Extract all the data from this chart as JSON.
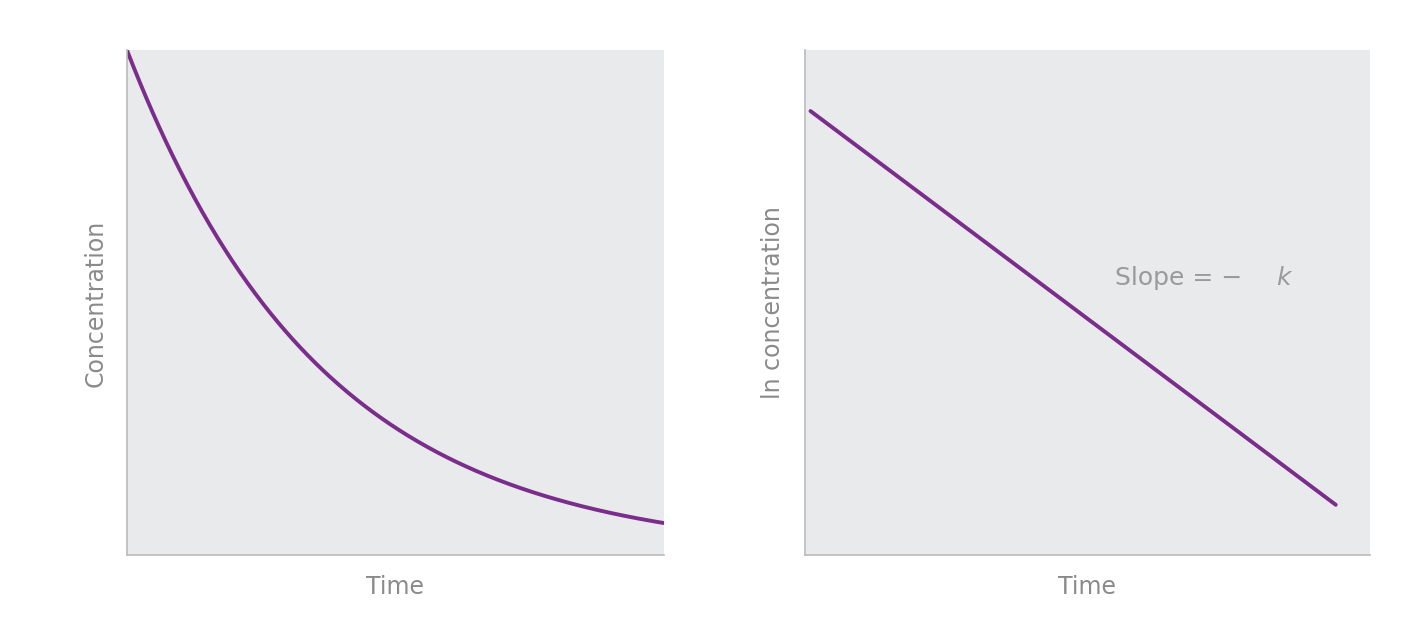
{
  "fig_bg_color": "#ffffff",
  "plot_bg_color": "#e8eaec",
  "line_color": "#7b2d8b",
  "line_width": 2.8,
  "panel1": {
    "ylabel": "Concentration",
    "xlabel": "Time",
    "label_color": "#8a8a8a",
    "ylabel_fontsize": 17,
    "xlabel_fontsize": 17
  },
  "panel2": {
    "ylabel": "ln concentration",
    "xlabel": "Time",
    "annotation_text_normal": "Slope = −",
    "annotation_text_italic": "k",
    "annotation_color": "#9a9a9a",
    "annotation_fontsize": 18,
    "label_color": "#8a8a8a",
    "ylabel_fontsize": 17,
    "xlabel_fontsize": 17
  }
}
